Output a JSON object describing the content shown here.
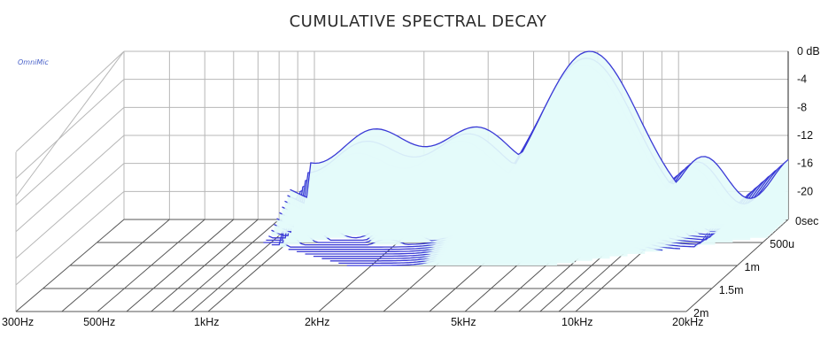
{
  "chart_data": {
    "type": "waterfall",
    "title": "CUMULATIVE SPECTRAL DECAY",
    "watermark": "OmniMic",
    "x_axis": {
      "scale": "log",
      "range_hz": [
        300,
        20000
      ],
      "ticks": [
        {
          "label": "300Hz",
          "hz": 300
        },
        {
          "label": "500Hz",
          "hz": 500
        },
        {
          "label": "1kHz",
          "hz": 1000
        },
        {
          "label": "2kHz",
          "hz": 2000
        },
        {
          "label": "5kHz",
          "hz": 5000
        },
        {
          "label": "10kHz",
          "hz": 10000
        },
        {
          "label": "20kHz",
          "hz": 20000
        }
      ]
    },
    "z_axis": {
      "ticks": [
        {
          "label": "0 dB",
          "db": 0
        },
        {
          "label": "-4",
          "db": -4
        },
        {
          "label": "-8",
          "db": -8
        },
        {
          "label": "-12",
          "db": -12
        },
        {
          "label": "-16",
          "db": -16
        },
        {
          "label": "-20",
          "db": -20
        }
      ],
      "range_db": [
        -24,
        0
      ]
    },
    "t_axis": {
      "ticks": [
        {
          "label": "0sec",
          "ms": 0
        },
        {
          "label": "500u",
          "ms": 0.5
        },
        {
          "label": "1m",
          "ms": 1.0
        },
        {
          "label": "1.5m",
          "ms": 1.5
        },
        {
          "label": "2m",
          "ms": 2.0
        }
      ],
      "range_ms": [
        0,
        2.0
      ]
    },
    "slice_times_ms": [
      0,
      0.05,
      0.1,
      0.15,
      0.2,
      0.25,
      0.3,
      0.35,
      0.4,
      0.45,
      0.5,
      0.55,
      0.6,
      0.65,
      0.7,
      0.75,
      0.8,
      0.85,
      0.9,
      0.95,
      1.0
    ],
    "resonance_peak_hz": 5700,
    "colors": {
      "line": "#3a3ad6",
      "fill": "#e4fbfa",
      "grid": "#555555",
      "frame": "#b7b7b7"
    }
  }
}
